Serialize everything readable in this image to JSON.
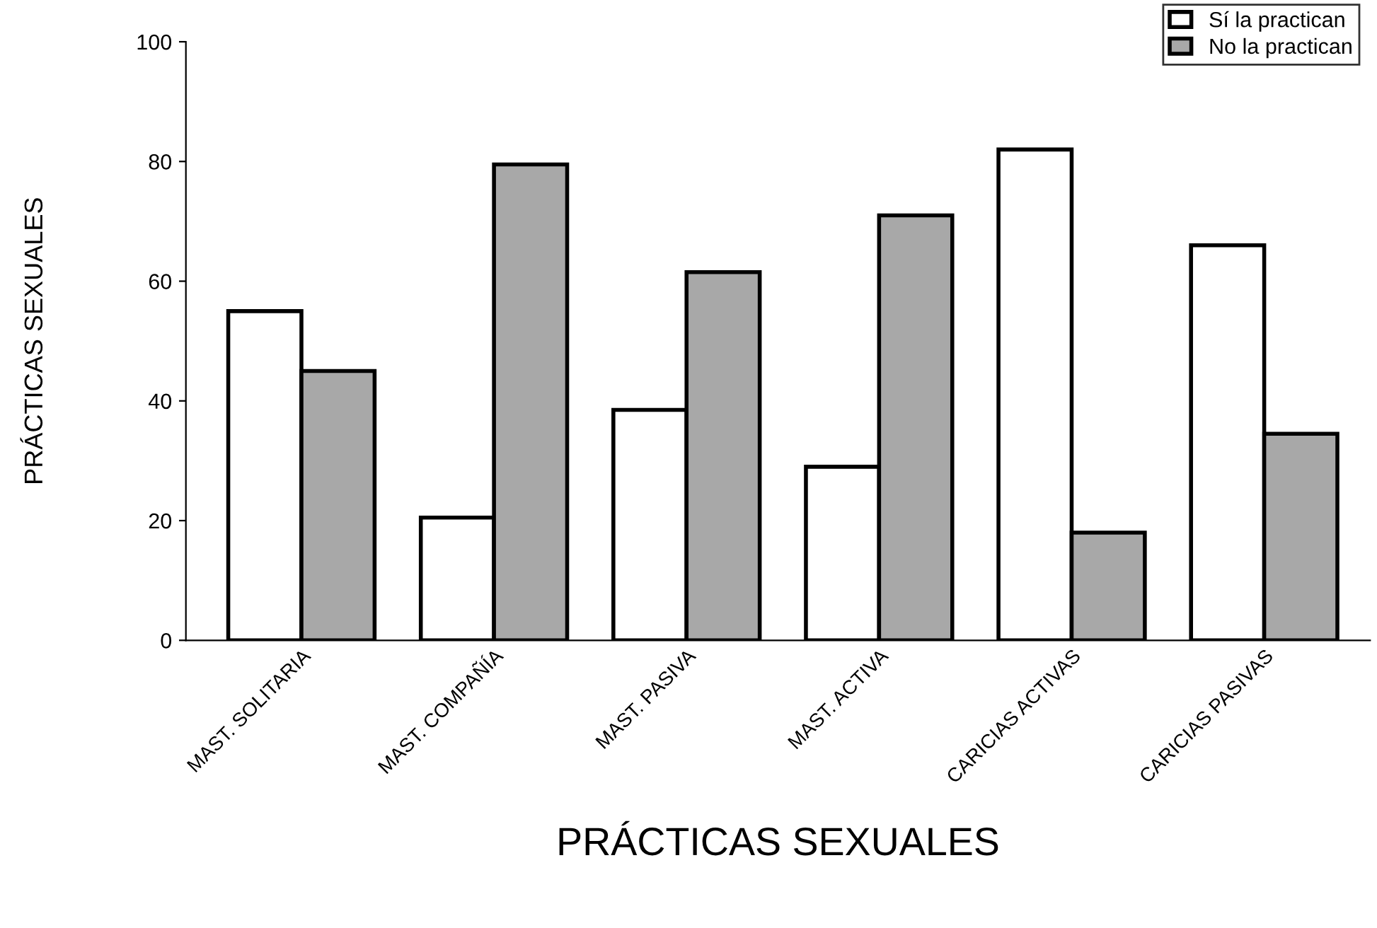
{
  "chart_data": {
    "type": "bar",
    "xlabel": "PRÁCTICAS SEXUALES",
    "ylabel": "PRÁCTICAS SEXUALES",
    "categories": [
      "MAST. SOLITARIA",
      "MAST. COMPAÑÍA",
      "MAST. PASIVA",
      "MAST. ACTIVA",
      "CARICIAS ACTIVAS",
      "CARICIAS PASIVAS"
    ],
    "series": [
      {
        "name": "Sí la practican",
        "color": "#ffffff",
        "values": [
          55,
          20.5,
          38.5,
          29,
          82,
          66
        ]
      },
      {
        "name": "No la practican",
        "color": "#a8a8a8",
        "values": [
          45,
          79.5,
          61.5,
          71,
          18,
          34.5
        ]
      }
    ],
    "ylim": [
      0,
      100
    ],
    "yticks": [
      0,
      20,
      40,
      60,
      80,
      100
    ],
    "grid": false,
    "legend": "top right"
  }
}
